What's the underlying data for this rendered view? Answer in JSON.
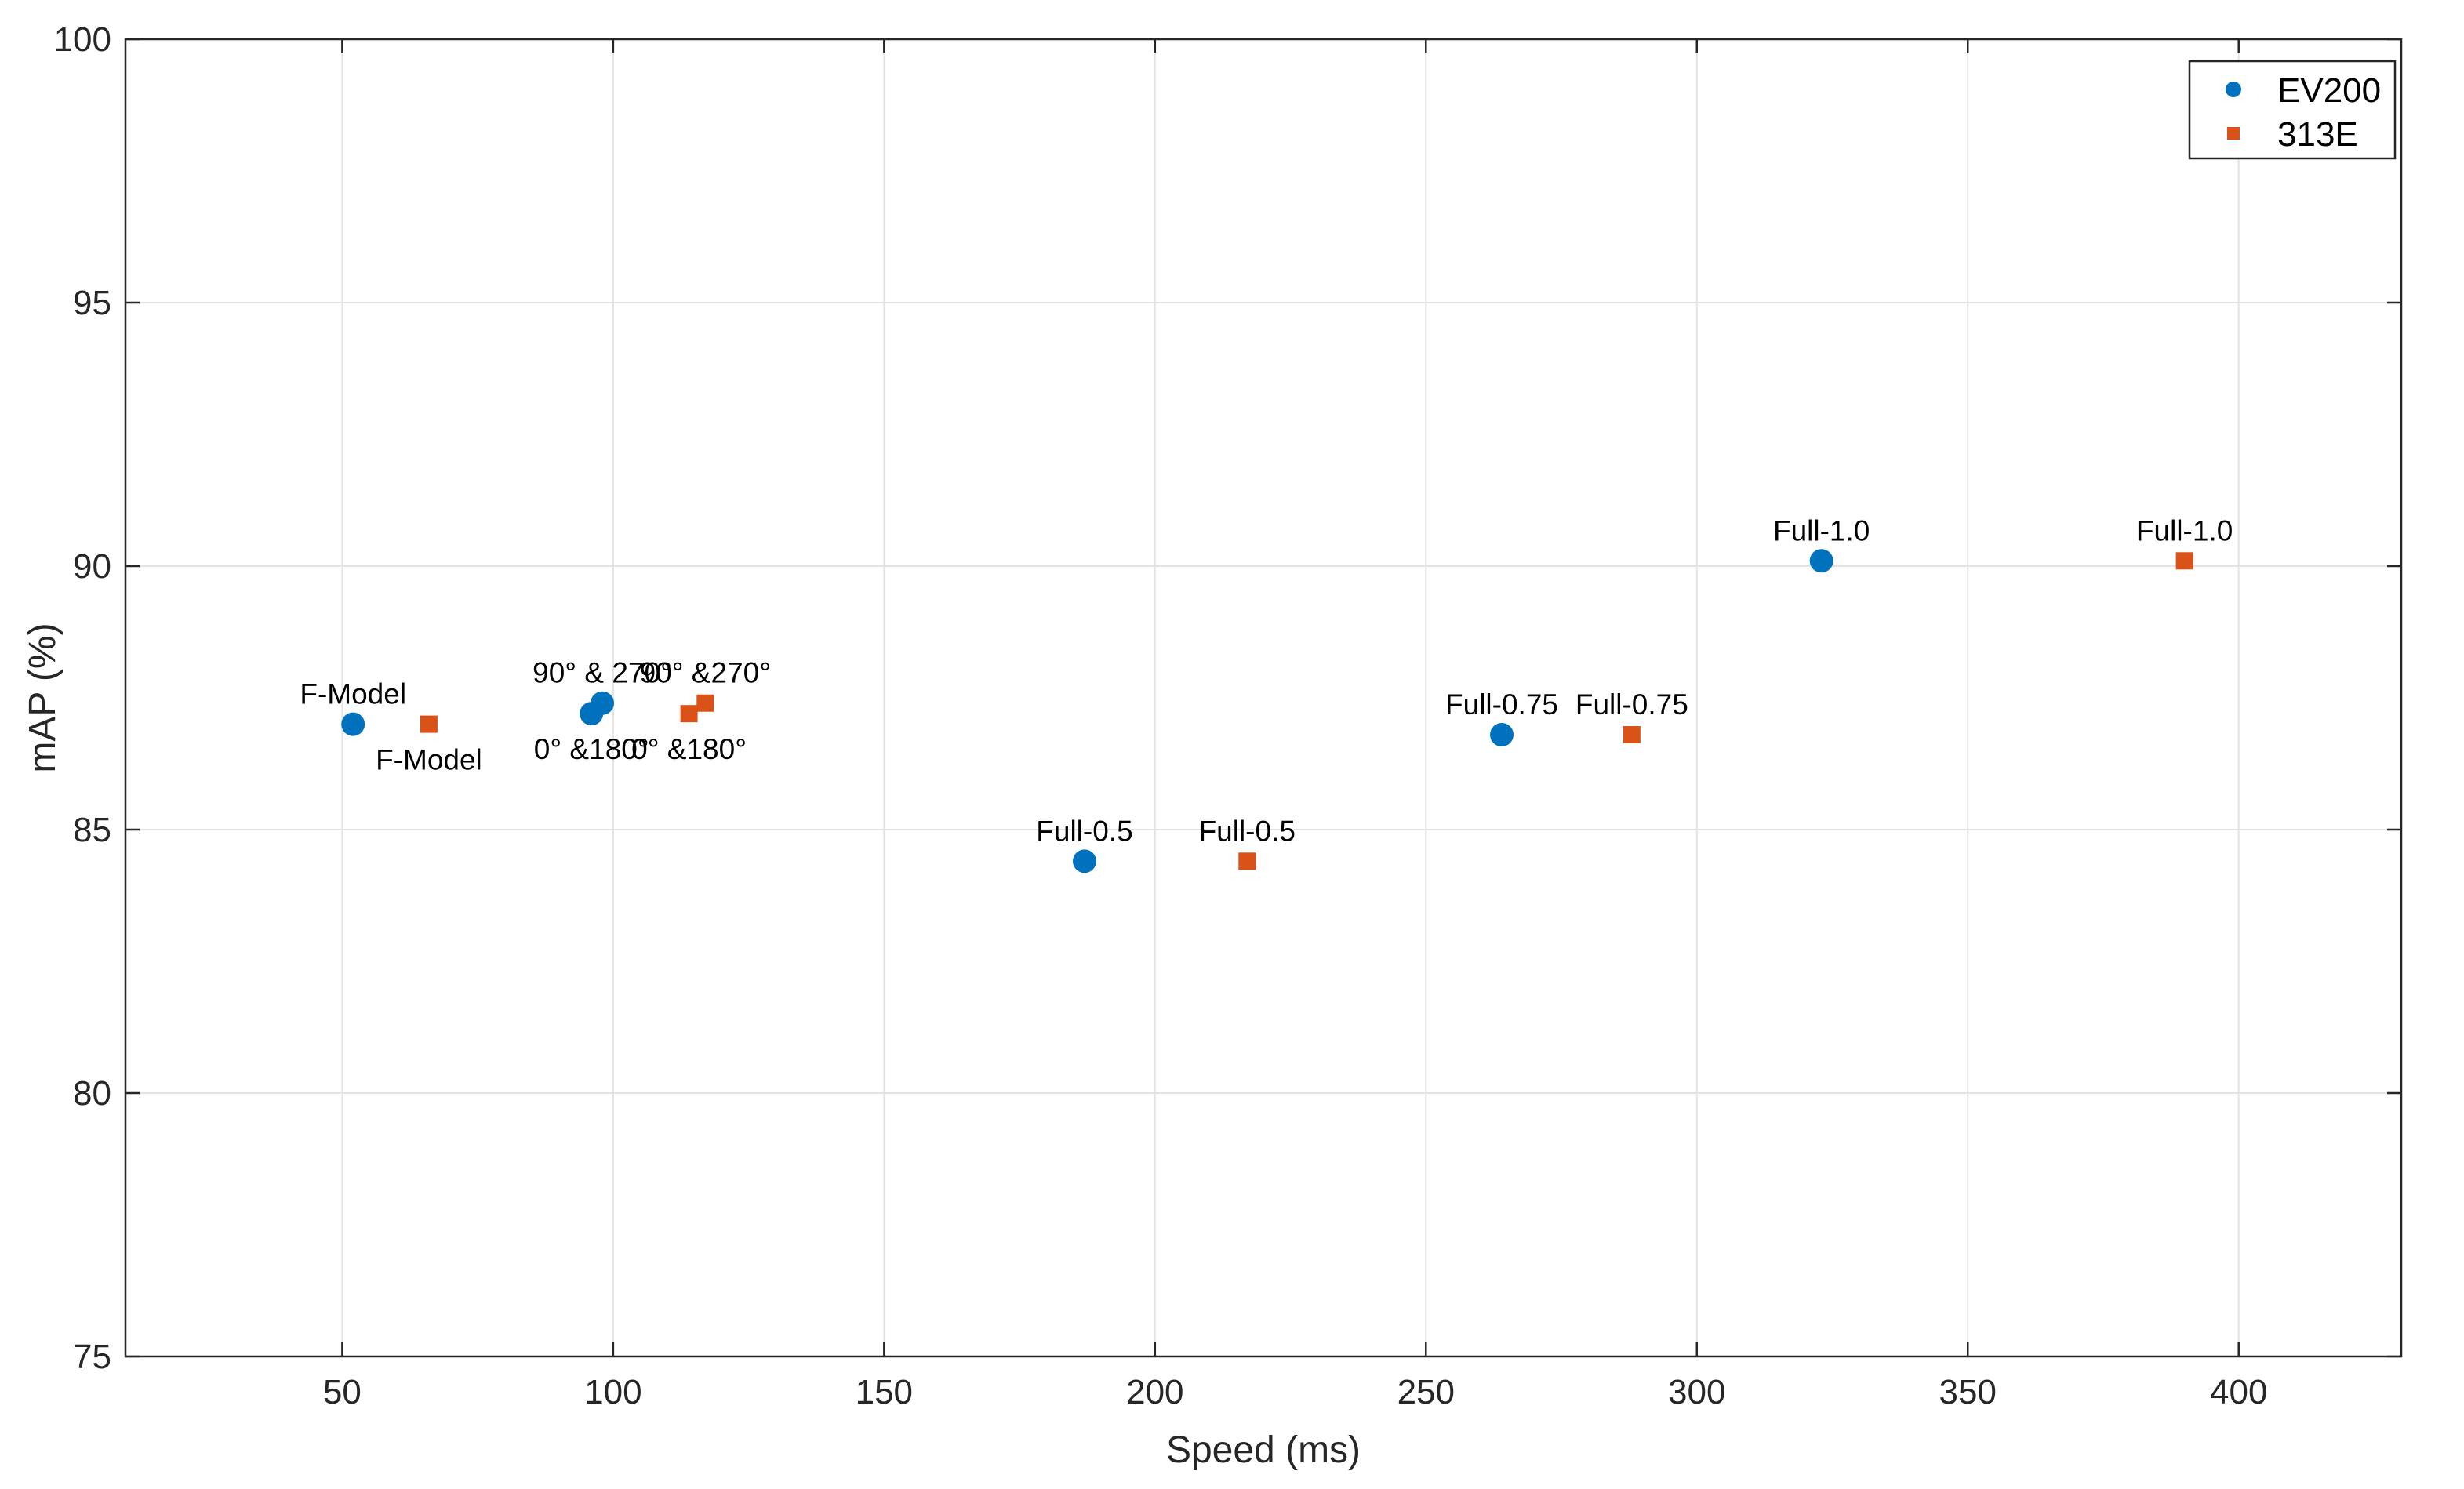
{
  "chart_data": {
    "type": "scatter",
    "title": "",
    "xlabel": "Speed (ms)",
    "ylabel": "mAP (%)",
    "xlim": [
      10,
      430
    ],
    "ylim": [
      75,
      100
    ],
    "xticks": [
      50,
      100,
      150,
      200,
      250,
      300,
      350,
      400
    ],
    "yticks": [
      75,
      80,
      85,
      90,
      95,
      100
    ],
    "grid": true,
    "legend_position": "top-right",
    "series": [
      {
        "name": "EV200",
        "color": "#0072BD",
        "marker": "circle",
        "points": [
          {
            "x": 52,
            "y": 87.0,
            "label": "F-Model",
            "label_side": "above"
          },
          {
            "x": 96,
            "y": 87.2,
            "label": "0° &180°",
            "label_side": "below"
          },
          {
            "x": 98,
            "y": 87.4,
            "label": "90° & 270°",
            "label_side": "above"
          },
          {
            "x": 187,
            "y": 84.4,
            "label": "Full-0.5",
            "label_side": "above"
          },
          {
            "x": 264,
            "y": 86.8,
            "label": "Full-0.75",
            "label_side": "above"
          },
          {
            "x": 323,
            "y": 90.1,
            "label": "Full-1.0",
            "label_side": "above"
          }
        ]
      },
      {
        "name": "313E",
        "color": "#D95319",
        "marker": "square",
        "points": [
          {
            "x": 66,
            "y": 87.0,
            "label": "F-Model",
            "label_side": "below"
          },
          {
            "x": 114,
            "y": 87.2,
            "label": "0° &180°",
            "label_side": "below"
          },
          {
            "x": 117,
            "y": 87.4,
            "label": "90° &270°",
            "label_side": "above"
          },
          {
            "x": 217,
            "y": 84.4,
            "label": "Full-0.5",
            "label_side": "above"
          },
          {
            "x": 288,
            "y": 86.8,
            "label": "Full-0.75",
            "label_side": "above"
          },
          {
            "x": 390,
            "y": 90.1,
            "label": "Full-1.0",
            "label_side": "above"
          }
        ]
      }
    ]
  }
}
